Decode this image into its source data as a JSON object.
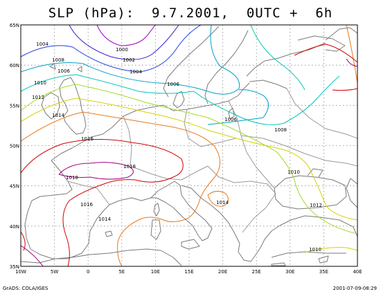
{
  "title": "SLP (hPa):  9.7.2001,  0UTC +  6h",
  "footer_left": "GrADS: COLA/IGES",
  "footer_right": "2001-07-09-08:29",
  "lat_labels": [
    "65N",
    "60N",
    "55N",
    "50N",
    "45N",
    "40N",
    "35N"
  ],
  "lon_labels": [
    "10W",
    "5W",
    "0",
    "5E",
    "10E",
    "15E",
    "20E",
    "25E",
    "30E",
    "35E",
    "40E"
  ],
  "contours": [
    {
      "value": "1000",
      "color": "#a000c8"
    },
    {
      "value": "1002",
      "color": "#3c1ecc"
    },
    {
      "value": "1004",
      "color": "#1e3ce6"
    },
    {
      "value": "1006",
      "color": "#00a0c8"
    },
    {
      "value": "1008",
      "color": "#00c8b4"
    },
    {
      "value": "1010",
      "color": "#a0dc28"
    },
    {
      "value": "1012",
      "color": "#d2d200"
    },
    {
      "value": "1014",
      "color": "#e6781e"
    },
    {
      "value": "1016",
      "color": "#d20000"
    },
    {
      "value": "1018",
      "color": "#a00080"
    }
  ],
  "contour_labels": [
    {
      "text": "1000",
      "level": "1000"
    },
    {
      "text": "1002",
      "level": "1002"
    },
    {
      "text": "1004",
      "level": "1004"
    },
    {
      "text": "1004",
      "level": "1004"
    },
    {
      "text": "1006",
      "level": "1006"
    },
    {
      "text": "1006",
      "level": "1006"
    },
    {
      "text": "1006",
      "level": "1006"
    },
    {
      "text": "1008",
      "level": "1008"
    },
    {
      "text": "1008",
      "level": "1008"
    },
    {
      "text": "1010",
      "level": "1010"
    },
    {
      "text": "1010",
      "level": "1010"
    },
    {
      "text": "1010",
      "level": "1010"
    },
    {
      "text": "1012",
      "level": "1012"
    },
    {
      "text": "1012",
      "level": "1012"
    },
    {
      "text": "1014",
      "level": "1014"
    },
    {
      "text": "1014",
      "level": "1014"
    },
    {
      "text": "1014",
      "level": "1014"
    },
    {
      "text": "1016",
      "level": "1016"
    },
    {
      "text": "1016",
      "level": "1016"
    },
    {
      "text": "1018",
      "level": "1018"
    },
    {
      "text": "1018",
      "level": "1018"
    }
  ]
}
